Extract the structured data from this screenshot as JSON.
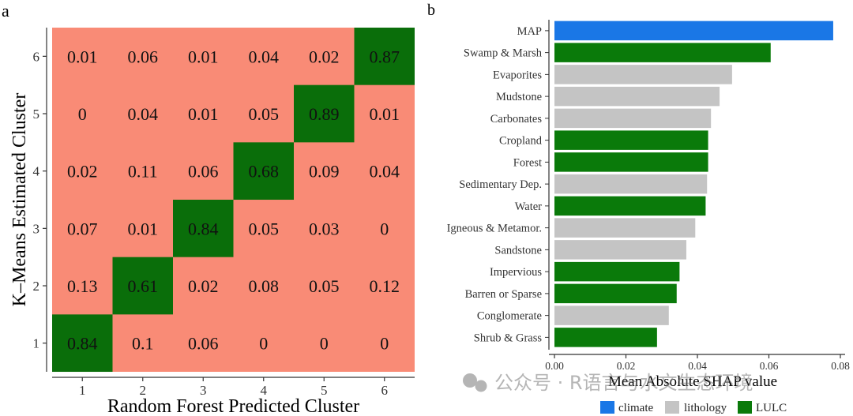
{
  "chart_data": [
    {
      "type": "heatmap",
      "panel_label": "a",
      "xlabel": "Random Forest Predicted Cluster",
      "ylabel": "K–Means Estimated Cluster",
      "x_categories": [
        "1",
        "2",
        "3",
        "4",
        "5",
        "6"
      ],
      "y_categories": [
        "1",
        "2",
        "3",
        "4",
        "5",
        "6"
      ],
      "cells": [
        [
          "0.84",
          "0.1",
          "0.06",
          "0",
          "0",
          "0"
        ],
        [
          "0.13",
          "0.61",
          "0.02",
          "0.08",
          "0.05",
          "0.12"
        ],
        [
          "0.07",
          "0.01",
          "0.84",
          "0.05",
          "0.03",
          "0"
        ],
        [
          "0.02",
          "0.11",
          "0.06",
          "0.68",
          "0.09",
          "0.04"
        ],
        [
          "0",
          "0.04",
          "0.01",
          "0.05",
          "0.89",
          "0.01"
        ],
        [
          "0.01",
          "0.06",
          "0.01",
          "0.04",
          "0.02",
          "0.87"
        ]
      ],
      "colors": {
        "off_diagonal": "#f98b76",
        "diagonal": "#0a6e0a"
      }
    },
    {
      "type": "bar",
      "orientation": "horizontal",
      "panel_label": "b",
      "xlabel": "Mean Absolute SHAP value",
      "xlim": [
        0,
        0.08
      ],
      "x_ticks": [
        "0.00",
        "0.02",
        "0.04",
        "0.06",
        "0.08"
      ],
      "categories": [
        "MAP",
        "Swamp & Marsh",
        "Evaporites",
        "Mudstone",
        "Carbonates",
        "Cropland",
        "Forest",
        "Sedimentary Dep.",
        "Water",
        "Igneous & Metamor.",
        "Sandstone",
        "Impervious",
        "Barren or Sparse",
        "Conglomerate",
        "Shrub & Grass"
      ],
      "values": [
        0.078,
        0.0605,
        0.0497,
        0.0462,
        0.0438,
        0.043,
        0.043,
        0.0427,
        0.0423,
        0.0394,
        0.0369,
        0.035,
        0.0342,
        0.032,
        0.0287
      ],
      "groups": [
        "climate",
        "LULC",
        "lithology",
        "lithology",
        "lithology",
        "LULC",
        "LULC",
        "lithology",
        "LULC",
        "lithology",
        "lithology",
        "LULC",
        "LULC",
        "lithology",
        "LULC"
      ],
      "legend": [
        {
          "key": "climate",
          "label": "climate",
          "color": "#1a77e6"
        },
        {
          "key": "lithology",
          "label": "lithology",
          "color": "#c4c4c4"
        },
        {
          "key": "LULC",
          "label": "LULC",
          "color": "#0a7a0a"
        }
      ]
    }
  ],
  "watermark": {
    "text": "公众号 · R语言与水文生态环境"
  }
}
